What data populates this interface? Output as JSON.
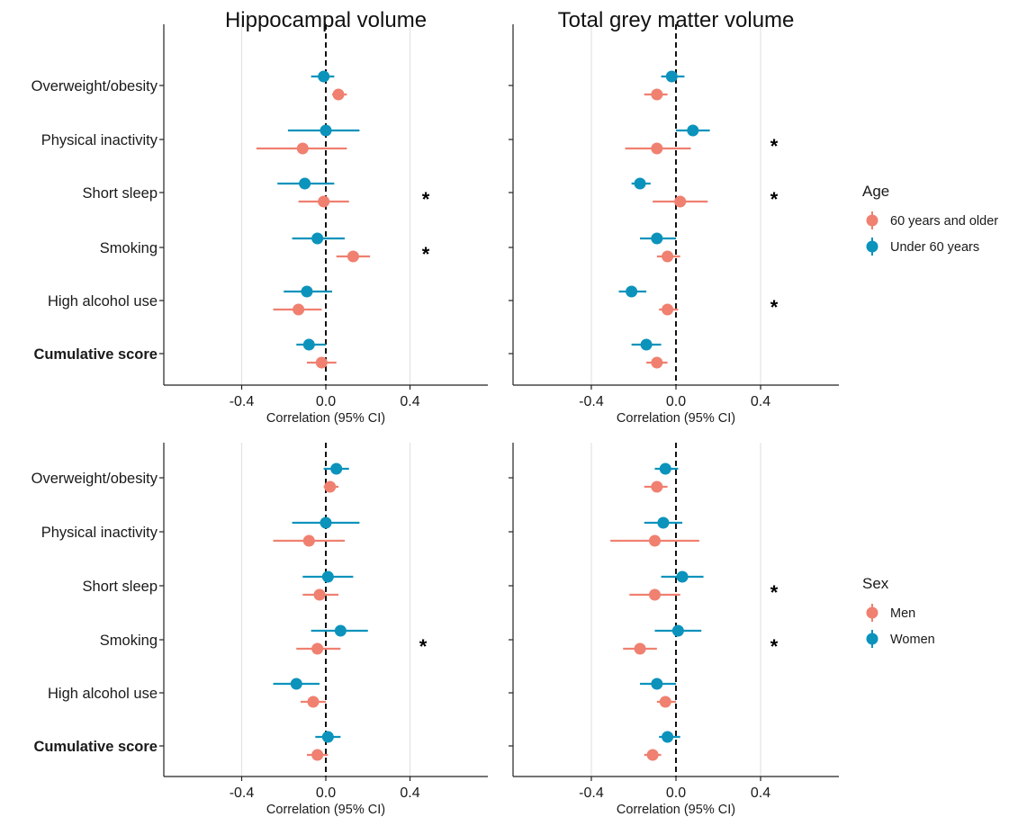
{
  "column_titles": [
    "Hippocampal volume",
    "Total grey matter volume"
  ],
  "categories": [
    "Overweight/obesity",
    "Physical inactivity",
    "Short sleep",
    "Smoking",
    "High alcohol use",
    "Cumulative score"
  ],
  "bold_categories": [
    "Cumulative score"
  ],
  "x_tick_labels": [
    "-0.4",
    "0.0",
    "0.4"
  ],
  "x_axis_title": "Correlation (95% CI)",
  "significance_marker": "*",
  "legends": [
    {
      "title": "Age",
      "items": [
        {
          "label": "60 years and older",
          "color": "#f08070"
        },
        {
          "label": "Under 60 years",
          "color": "#0b93bc"
        }
      ]
    },
    {
      "title": "Sex",
      "items": [
        {
          "label": "Men",
          "color": "#f08070"
        },
        {
          "label": "Women",
          "color": "#0b93bc"
        }
      ]
    }
  ],
  "colors": {
    "salmon": "#f08070",
    "teal": "#0b93bc",
    "grid": "#e3e3e3",
    "axis": "#222222"
  },
  "chart_data": [
    {
      "type": "scatter",
      "panel": "Age - Hippocampal volume",
      "title": "Hippocampal volume",
      "xlabel": "Correlation (95% CI)",
      "xlim": [
        -0.77,
        0.77
      ],
      "xticks": [
        -0.4,
        0.0,
        0.4
      ],
      "reference_line": 0.0,
      "categories": [
        "Overweight/obesity",
        "Physical inactivity",
        "Short sleep",
        "Smoking",
        "High alcohol use",
        "Cumulative score"
      ],
      "series": [
        {
          "name": "Under 60 years",
          "color": "#0b93bc",
          "estimate": [
            -0.01,
            0.0,
            -0.1,
            -0.04,
            -0.09,
            -0.08
          ],
          "lower": [
            -0.07,
            -0.18,
            -0.23,
            -0.16,
            -0.2,
            -0.14
          ],
          "upper": [
            0.04,
            0.16,
            0.04,
            0.09,
            0.03,
            0.0
          ]
        },
        {
          "name": "60 years and older",
          "color": "#f08070",
          "estimate": [
            0.06,
            -0.11,
            -0.01,
            0.13,
            -0.13,
            -0.02
          ],
          "lower": [
            0.03,
            -0.33,
            -0.13,
            0.05,
            -0.25,
            -0.09
          ],
          "upper": [
            0.1,
            0.1,
            0.11,
            0.21,
            -0.02,
            0.05
          ]
        }
      ],
      "significant": [
        false,
        false,
        true,
        true,
        false,
        false
      ]
    },
    {
      "type": "scatter",
      "panel": "Age - Total grey matter volume",
      "title": "Total grey matter volume",
      "xlabel": "Correlation (95% CI)",
      "xlim": [
        -0.77,
        0.77
      ],
      "xticks": [
        -0.4,
        0.0,
        0.4
      ],
      "reference_line": 0.0,
      "categories": [
        "Overweight/obesity",
        "Physical inactivity",
        "Short sleep",
        "Smoking",
        "High alcohol use",
        "Cumulative score"
      ],
      "series": [
        {
          "name": "Under 60 years",
          "color": "#0b93bc",
          "estimate": [
            -0.02,
            0.08,
            -0.17,
            -0.09,
            -0.21,
            -0.14
          ],
          "lower": [
            -0.07,
            0.0,
            -0.21,
            -0.17,
            -0.27,
            -0.21
          ],
          "upper": [
            0.04,
            0.16,
            -0.12,
            0.0,
            -0.14,
            -0.07
          ]
        },
        {
          "name": "60 years and older",
          "color": "#f08070",
          "estimate": [
            -0.09,
            -0.09,
            0.02,
            -0.04,
            -0.04,
            -0.09
          ],
          "lower": [
            -0.15,
            -0.24,
            -0.11,
            -0.09,
            -0.08,
            -0.14
          ],
          "upper": [
            -0.04,
            0.07,
            0.15,
            0.02,
            0.01,
            -0.04
          ]
        }
      ],
      "significant": [
        false,
        true,
        true,
        false,
        true,
        false
      ]
    },
    {
      "type": "scatter",
      "panel": "Sex - Hippocampal volume",
      "title": "Hippocampal volume",
      "xlabel": "Correlation (95% CI)",
      "xlim": [
        -0.77,
        0.77
      ],
      "xticks": [
        -0.4,
        0.0,
        0.4
      ],
      "reference_line": 0.0,
      "categories": [
        "Overweight/obesity",
        "Physical inactivity",
        "Short sleep",
        "Smoking",
        "High alcohol use",
        "Cumulative score"
      ],
      "series": [
        {
          "name": "Women",
          "color": "#0b93bc",
          "estimate": [
            0.05,
            0.0,
            0.01,
            0.07,
            -0.14,
            0.01
          ],
          "lower": [
            -0.01,
            -0.16,
            -0.11,
            -0.07,
            -0.25,
            -0.05
          ],
          "upper": [
            0.11,
            0.16,
            0.13,
            0.2,
            -0.03,
            0.07
          ]
        },
        {
          "name": "Men",
          "color": "#f08070",
          "estimate": [
            0.02,
            -0.08,
            -0.03,
            -0.04,
            -0.06,
            -0.04
          ],
          "lower": [
            -0.01,
            -0.25,
            -0.11,
            -0.14,
            -0.12,
            -0.09
          ],
          "upper": [
            0.06,
            0.09,
            0.06,
            0.07,
            0.0,
            0.01
          ]
        }
      ],
      "significant": [
        false,
        false,
        false,
        true,
        false,
        false
      ]
    },
    {
      "type": "scatter",
      "panel": "Sex - Total grey matter volume",
      "title": "Total grey matter volume",
      "xlabel": "Correlation (95% CI)",
      "xlim": [
        -0.77,
        0.77
      ],
      "xticks": [
        -0.4,
        0.0,
        0.4
      ],
      "reference_line": 0.0,
      "categories": [
        "Overweight/obesity",
        "Physical inactivity",
        "Short sleep",
        "Smoking",
        "High alcohol use",
        "Cumulative score"
      ],
      "series": [
        {
          "name": "Women",
          "color": "#0b93bc",
          "estimate": [
            -0.05,
            -0.06,
            0.03,
            0.01,
            -0.09,
            -0.04
          ],
          "lower": [
            -0.1,
            -0.15,
            -0.07,
            -0.1,
            -0.17,
            -0.08
          ],
          "upper": [
            0.01,
            0.03,
            0.13,
            0.12,
            0.0,
            0.02
          ]
        },
        {
          "name": "Men",
          "color": "#f08070",
          "estimate": [
            -0.09,
            -0.1,
            -0.1,
            -0.17,
            -0.05,
            -0.11
          ],
          "lower": [
            -0.15,
            -0.31,
            -0.22,
            -0.25,
            -0.09,
            -0.15
          ],
          "upper": [
            -0.04,
            0.11,
            0.02,
            -0.09,
            0.0,
            -0.07
          ]
        }
      ],
      "significant": [
        false,
        false,
        true,
        true,
        false,
        false
      ]
    }
  ]
}
